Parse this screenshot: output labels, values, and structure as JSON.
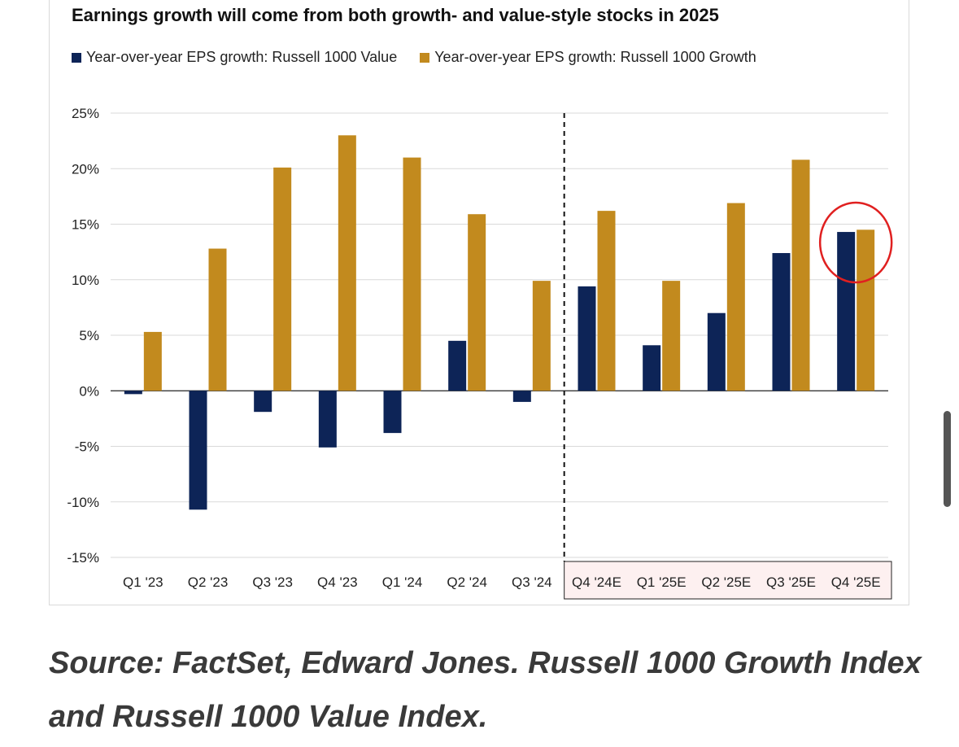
{
  "chart_data": {
    "type": "bar",
    "title": "Earnings growth will come from both growth- and value-style stocks in 2025",
    "categories": [
      "Q1 '23",
      "Q2 '23",
      "Q3 '23",
      "Q4 '23",
      "Q1 '24",
      "Q2 '24",
      "Q3 '24",
      "Q4 '24E",
      "Q1 '25E",
      "Q2 '25E",
      "Q3 '25E",
      "Q4 '25E"
    ],
    "series": [
      {
        "name": "Year-over-year EPS growth: Russell 1000 Value",
        "color": "#0d2457",
        "values": [
          -0.3,
          -10.7,
          -1.9,
          -5.1,
          -3.8,
          4.5,
          -1.0,
          9.4,
          4.1,
          7.0,
          12.4,
          14.3
        ]
      },
      {
        "name": "Year-over-year EPS growth: Russell 1000 Growth",
        "color": "#c28a1e",
        "values": [
          5.3,
          12.8,
          20.1,
          23.0,
          21.0,
          15.9,
          9.9,
          16.2,
          9.9,
          16.9,
          20.8,
          14.5
        ]
      }
    ],
    "ylim": [
      -15,
      25
    ],
    "ytick_step": 5,
    "ytick_labels": [
      "25%",
      "20%",
      "15%",
      "10%",
      "5%",
      "0%",
      "-5%",
      "-10%",
      "-15%"
    ],
    "xlabel": "",
    "ylabel": "",
    "grid": true,
    "legend_position": "top-left",
    "forecast_divider_after_category": "Q3 '24",
    "estimate_categories_highlight": "#fdf0f0",
    "highlight_circle_category": "Q4 '25E",
    "highlight_circle_color": "#e02020"
  },
  "source_text": "Source: FactSet, Edward Jones. Russell 1000 Growth Index and Russell 1000 Value Index."
}
